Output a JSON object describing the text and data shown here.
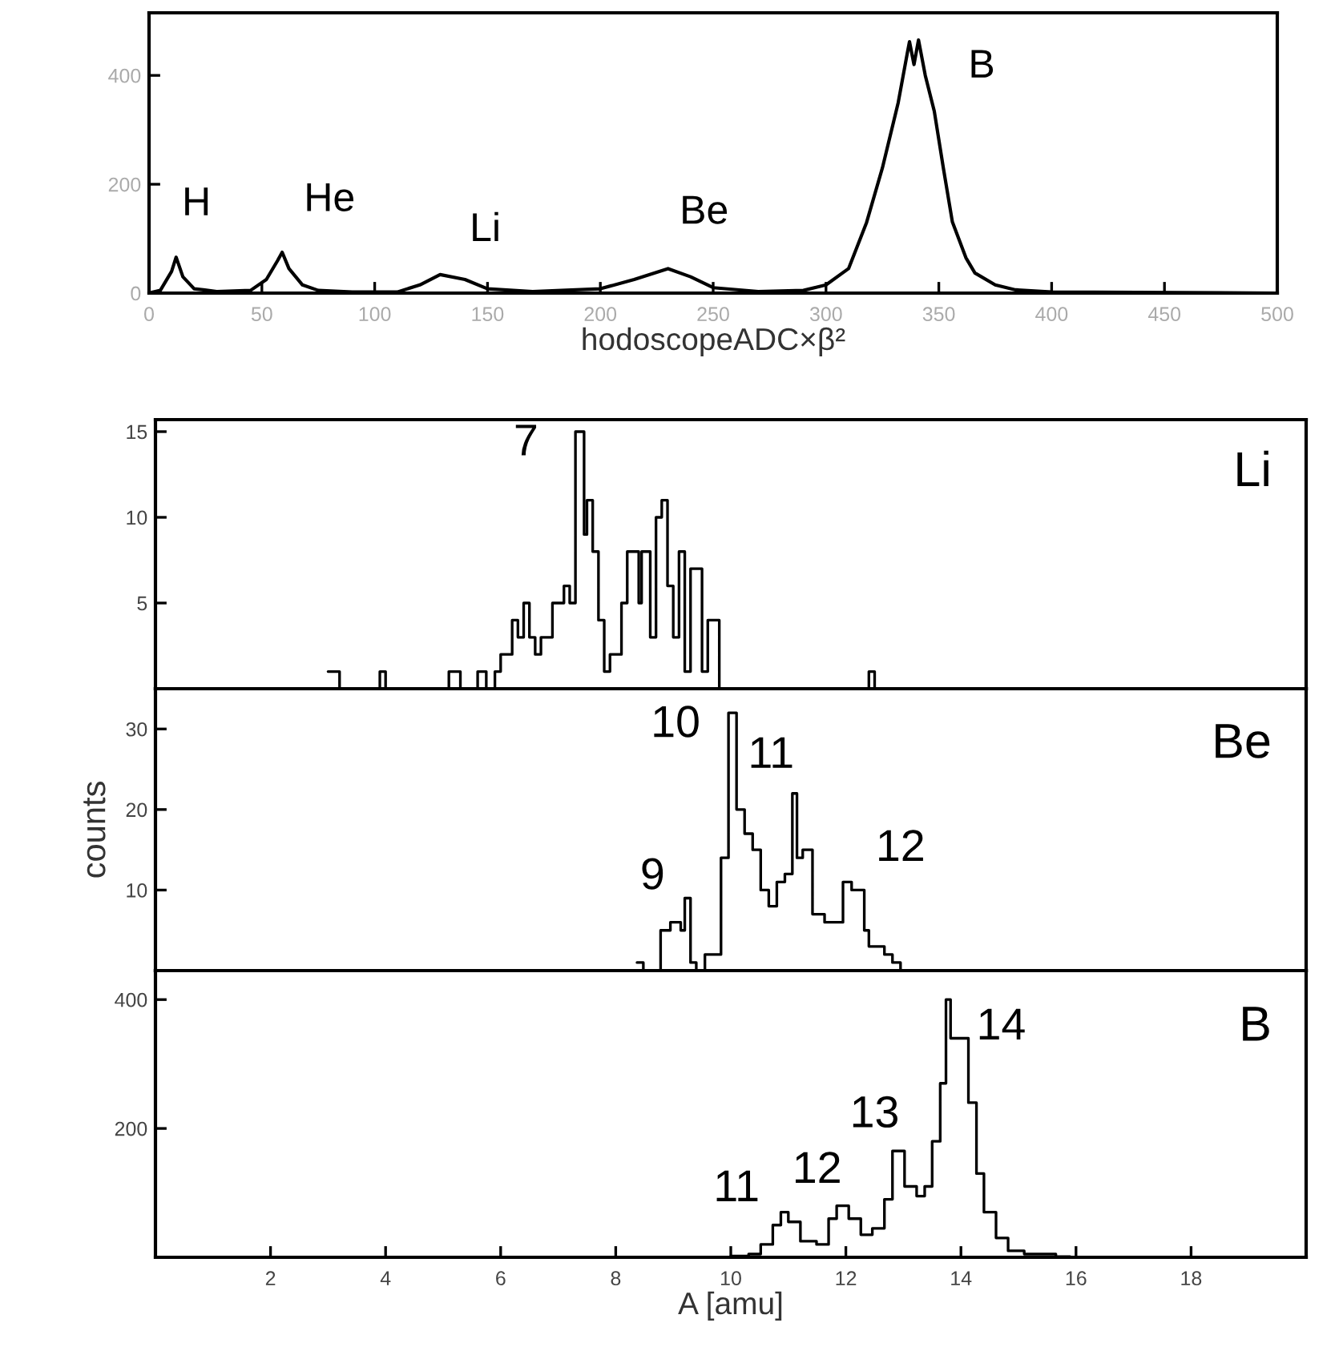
{
  "chart_data": [
    {
      "type": "line",
      "xlabel": "hodoscopeADC×β²",
      "xlim": [
        0,
        500
      ],
      "ylim": [
        0,
        515
      ],
      "xticks": [
        0,
        50,
        100,
        150,
        200,
        250,
        300,
        350,
        400,
        450,
        500
      ],
      "yticks": [
        0,
        200,
        400
      ],
      "x": [
        0,
        5,
        10,
        12,
        15,
        20,
        30,
        45,
        52,
        57,
        59,
        62,
        68,
        75,
        90,
        110,
        120,
        129,
        140,
        150,
        170,
        200,
        215,
        230,
        240,
        250,
        270,
        290,
        300,
        310,
        318,
        325,
        332,
        336,
        337,
        339,
        341,
        344,
        348,
        352,
        356,
        362,
        366,
        375,
        384,
        400,
        500
      ],
      "series": [
        {
          "color": "#000000",
          "values": [
            0,
            5,
            40,
            66,
            30,
            8,
            3,
            5,
            25,
            60,
            75,
            45,
            15,
            5,
            2,
            2,
            15,
            34,
            25,
            8,
            3,
            8,
            25,
            45,
            30,
            10,
            3,
            5,
            15,
            45,
            130,
            230,
            350,
            440,
            462,
            420,
            465,
            400,
            334,
            230,
            131,
            65,
            37,
            15,
            6,
            2,
            0
          ]
        }
      ],
      "annotations": [
        "H",
        "He",
        "Li",
        "Be",
        "B"
      ]
    },
    {
      "type": "step",
      "title": "Li",
      "xlim": [
        0,
        20
      ],
      "ylim": [
        0,
        15.7
      ],
      "yticks": [
        5,
        10,
        15
      ],
      "tick_labels": "y",
      "x": [
        3.0,
        3.2,
        3.9,
        4.0,
        5.1,
        5.3,
        5.6,
        5.75,
        5.9,
        6.0,
        6.2,
        6.3,
        6.4,
        6.5,
        6.6,
        6.7,
        6.9,
        7.1,
        7.2,
        7.3,
        7.45,
        7.5,
        7.6,
        7.7,
        7.8,
        7.9,
        8.1,
        8.2,
        8.4,
        8.45,
        8.6,
        8.7,
        8.8,
        8.9,
        9.0,
        9.1,
        9.2,
        9.3,
        9.5,
        9.6,
        9.8,
        12.4,
        12.5
      ],
      "series": [
        {
          "color": "#000000",
          "values": [
            1,
            0,
            1,
            0,
            1,
            0,
            1,
            0,
            1,
            2,
            4,
            3,
            5,
            3,
            2,
            3,
            5,
            6,
            5,
            15,
            9,
            11,
            8,
            4,
            1,
            2,
            5,
            8,
            5,
            8,
            3,
            10,
            11,
            6,
            3,
            8,
            1,
            7,
            1,
            4,
            0,
            1,
            0
          ]
        }
      ],
      "annotations": [
        "7"
      ]
    },
    {
      "type": "step",
      "title": "Be",
      "ylabel": "counts",
      "xlim": [
        0,
        20
      ],
      "ylim": [
        0,
        35
      ],
      "yticks": [
        10,
        20,
        30
      ],
      "tick_labels": "y",
      "x": [
        8.37,
        8.48,
        8.78,
        8.95,
        9.13,
        9.2,
        9.3,
        9.4,
        9.55,
        9.75,
        9.83,
        9.96,
        10.1,
        10.24,
        10.38,
        10.52,
        10.66,
        10.8,
        10.94,
        11.07,
        11.15,
        11.25,
        11.42,
        11.63,
        11.84,
        11.95,
        12.1,
        12.32,
        12.4,
        12.67,
        12.81,
        12.95
      ],
      "series": [
        {
          "color": "#000000",
          "values": [
            1,
            0,
            5,
            6,
            5,
            9,
            1,
            0,
            2,
            2,
            14,
            32,
            20,
            17,
            15,
            10,
            8,
            11,
            12,
            22,
            14,
            15,
            7,
            6,
            6,
            11,
            10,
            5,
            3,
            2,
            1,
            0
          ]
        }
      ],
      "annotations": [
        "9",
        "10",
        "11",
        "12"
      ]
    },
    {
      "type": "step",
      "title": "B",
      "xlabel": "A [amu]",
      "xlim": [
        0,
        20
      ],
      "ylim": [
        0,
        445
      ],
      "xticks": [
        2,
        4,
        6,
        8,
        10,
        12,
        14,
        16,
        18
      ],
      "yticks": [
        200,
        400
      ],
      "x": [
        10.0,
        10.31,
        10.52,
        10.73,
        10.87,
        11.0,
        11.21,
        11.49,
        11.7,
        11.84,
        12.05,
        12.26,
        12.46,
        12.67,
        12.81,
        13.02,
        13.23,
        13.37,
        13.5,
        13.64,
        13.74,
        13.82,
        13.99,
        14.13,
        14.27,
        14.4,
        14.61,
        14.82,
        15.1,
        15.65,
        15.9
      ],
      "series": [
        {
          "color": "#000000",
          "values": [
            2,
            5,
            20,
            50,
            70,
            55,
            25,
            20,
            60,
            80,
            60,
            35,
            45,
            90,
            165,
            110,
            95,
            110,
            180,
            270,
            400,
            340,
            340,
            240,
            130,
            70,
            30,
            10,
            5,
            1,
            0
          ]
        }
      ],
      "annotations": [
        "11",
        "12",
        "13",
        "14"
      ]
    }
  ]
}
